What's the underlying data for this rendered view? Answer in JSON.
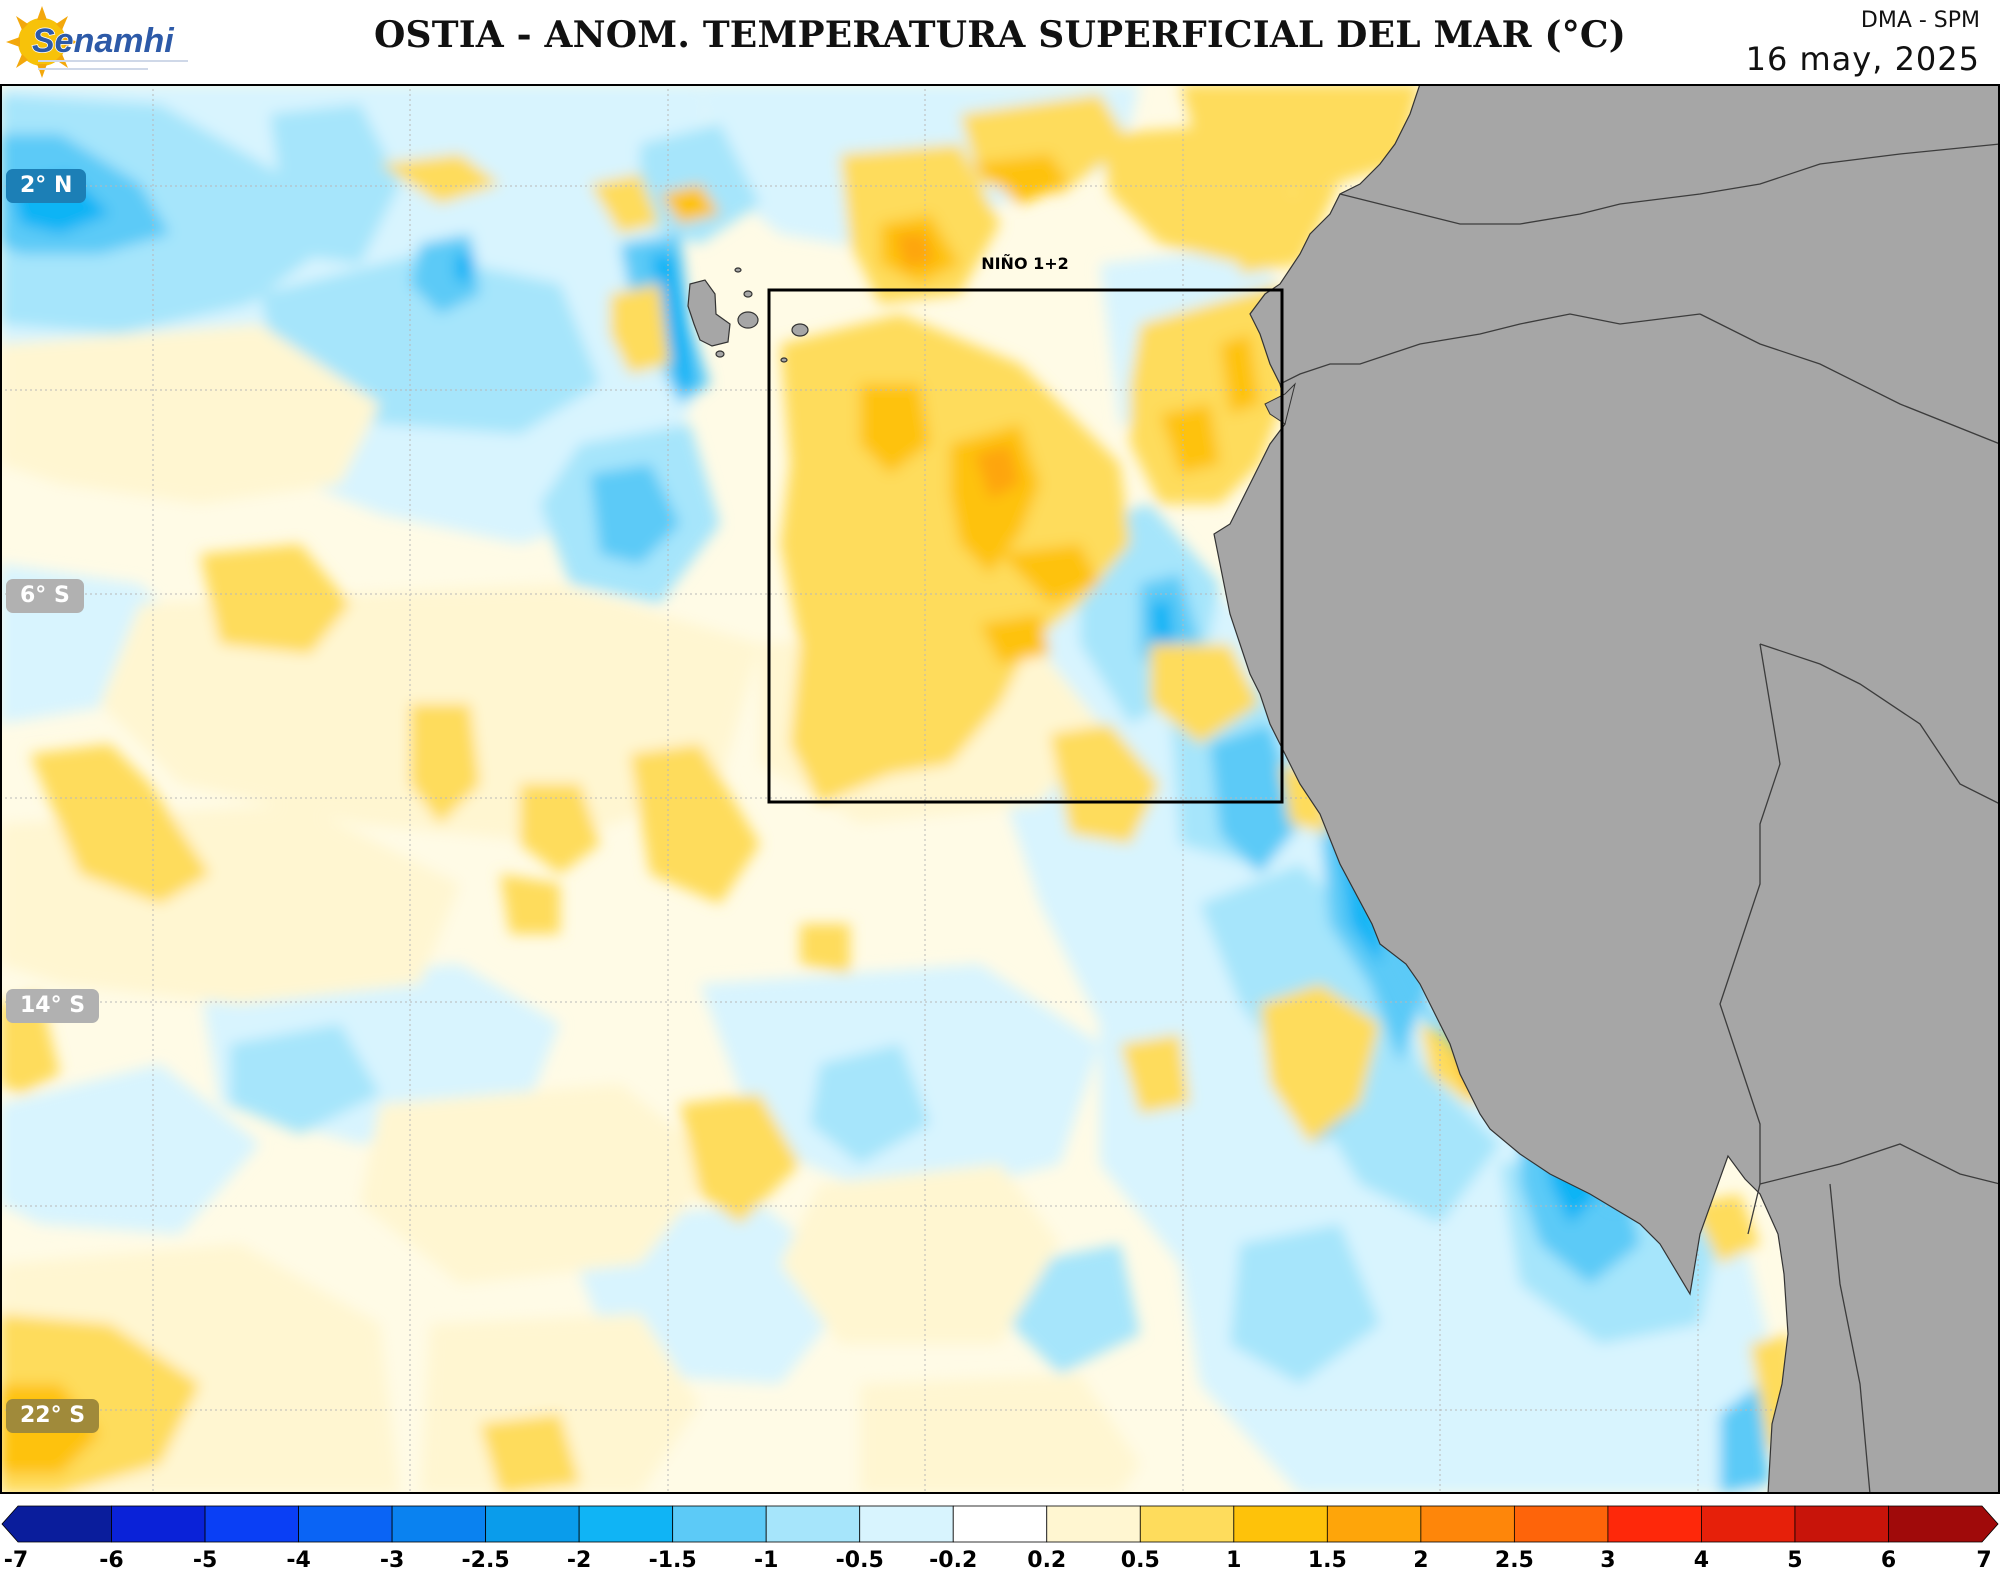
{
  "header": {
    "logo_text": "Senamhi",
    "title": "OSTIA - ANOM. TEMPERATURA SUPERFICIAL DEL MAR (°C)",
    "agency": "DMA - SPM",
    "date": "16 may, 2025"
  },
  "map": {
    "region_label": "NIÑO 1+2",
    "latitude_labels": [
      "2° N",
      "6° S",
      "14° S",
      "22° S"
    ],
    "land_color": "#a6a6a6",
    "box_color": "#000000"
  },
  "legend": {
    "ticks": [
      "-7",
      "-6",
      "-5",
      "-4",
      "-3",
      "-2.5",
      "-2",
      "-1.5",
      "-1",
      "-0.5",
      "-0.2",
      "0.2",
      "0.5",
      "1",
      "1.5",
      "2",
      "2.5",
      "3",
      "4",
      "5",
      "6",
      "7"
    ],
    "colors": [
      "#0a1d9c",
      "#0a22d8",
      "#0a3ff5",
      "#0a64f5",
      "#0a82f0",
      "#0a9ceb",
      "#10b4f5",
      "#5ccaf7",
      "#a6e5fb",
      "#d8f4fe",
      "#ffffff",
      "#fff6d1",
      "#fedc5c",
      "#fec20a",
      "#fea50a",
      "#fe860a",
      "#fe640a",
      "#fe280a",
      "#e6200a",
      "#c8140a",
      "#a00a0a"
    ]
  }
}
